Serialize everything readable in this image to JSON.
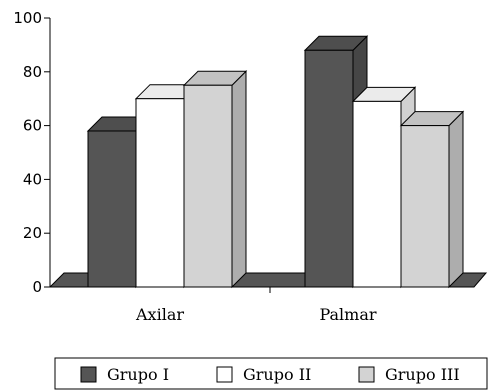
{
  "chart_data": {
    "type": "bar",
    "title": "",
    "xlabel": "",
    "ylabel": "",
    "categories": [
      "Axilar",
      "Palmar"
    ],
    "ylim": [
      0,
      100
    ],
    "yticks": [
      0,
      20,
      40,
      60,
      80,
      100
    ],
    "series": [
      {
        "name": "Grupo I",
        "values": [
          58,
          88
        ],
        "color": "#555555"
      },
      {
        "name": "Grupo II",
        "values": [
          70,
          69
        ],
        "color": "#ffffff"
      },
      {
        "name": "Grupo III",
        "values": [
          75,
          60
        ],
        "color": "#d3d3d3"
      }
    ],
    "legend_position": "bottom",
    "grid": false,
    "style": "3d-bars"
  }
}
